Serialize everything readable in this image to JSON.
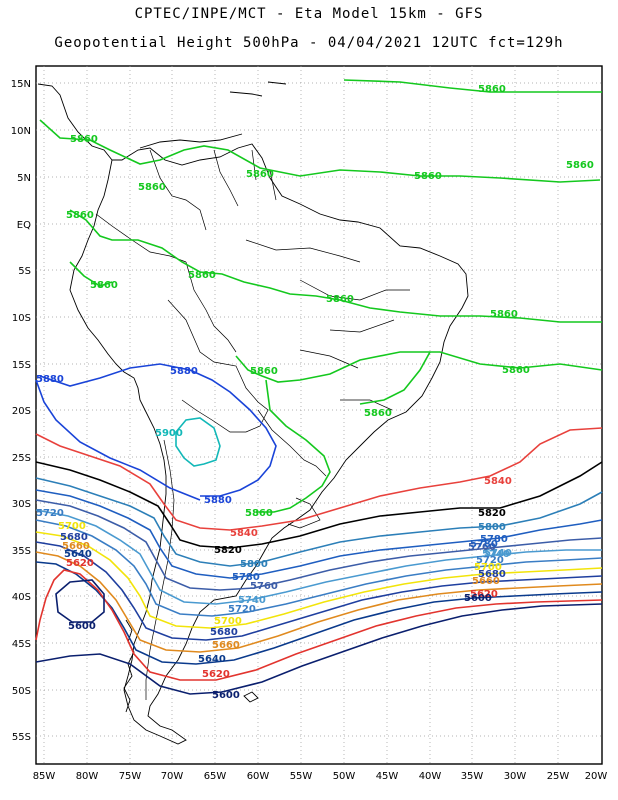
{
  "header": {
    "line1": "CPTEC/INPE/MCT -  Eta Model 15km - GFS",
    "line2": "Geopotential Height 500hPa - 04/04/2021 12UTC fct=129h"
  },
  "axes": {
    "lat_labels": [
      "15N",
      "10N",
      "5N",
      "EQ",
      "5S",
      "10S",
      "15S",
      "20S",
      "25S",
      "30S",
      "35S",
      "40S",
      "45S",
      "50S",
      "55S"
    ],
    "lon_labels": [
      "85W",
      "80W",
      "75W",
      "70W",
      "65W",
      "60W",
      "55W",
      "50W",
      "45W",
      "40W",
      "35W",
      "30W",
      "25W",
      "20W"
    ],
    "grid": "dotted"
  },
  "contour_colors": {
    "5600": "#0a1f6e",
    "5620": "#e2342e",
    "5640": "#0a3a8c",
    "5660": "#e08a1e",
    "5680": "#1f3f9f",
    "5700": "#f2e40a",
    "5720": "#3a7dc4",
    "5740": "#4a9ad0",
    "5760": "#3c5da8",
    "5780": "#1f5ec0",
    "5800": "#2c7fb8",
    "5820": "#000000",
    "5840": "#e8413c",
    "5860": "#14c81e",
    "5880": "#1a44d8",
    "5900": "#12b8b8"
  },
  "contour_labels": [
    {
      "text": "5860",
      "color": "#14c81e"
    },
    {
      "text": "5860",
      "color": "#14c81e"
    },
    {
      "text": "5860",
      "color": "#14c81e"
    },
    {
      "text": "5860",
      "color": "#14c81e"
    },
    {
      "text": "5860",
      "color": "#14c81e"
    },
    {
      "text": "5860",
      "color": "#14c81e"
    },
    {
      "text": "5860",
      "color": "#14c81e"
    },
    {
      "text": "5860",
      "color": "#14c81e"
    },
    {
      "text": "5860",
      "color": "#14c81e"
    },
    {
      "text": "5860",
      "color": "#14c81e"
    },
    {
      "text": "5860",
      "color": "#14c81e"
    },
    {
      "text": "5860",
      "color": "#14c81e"
    },
    {
      "text": "5860",
      "color": "#14c81e"
    },
    {
      "text": "5860",
      "color": "#14c81e"
    },
    {
      "text": "5860",
      "color": "#14c81e"
    },
    {
      "text": "5880",
      "color": "#1a44d8"
    },
    {
      "text": "5880",
      "color": "#1a44d8"
    },
    {
      "text": "5880",
      "color": "#1a44d8"
    },
    {
      "text": "5900",
      "color": "#12b8b8"
    },
    {
      "text": "5840",
      "color": "#e8413c"
    },
    {
      "text": "5840",
      "color": "#e8413c"
    },
    {
      "text": "5820",
      "color": "#000000"
    },
    {
      "text": "5820",
      "color": "#000000"
    },
    {
      "text": "5800",
      "color": "#2c7fb8"
    },
    {
      "text": "5800",
      "color": "#2c7fb8"
    },
    {
      "text": "5780",
      "color": "#1f5ec0"
    },
    {
      "text": "5780",
      "color": "#1f5ec0"
    },
    {
      "text": "5760",
      "color": "#3c5da8"
    },
    {
      "text": "5740",
      "color": "#4a9ad0"
    },
    {
      "text": "5740",
      "color": "#4a9ad0"
    },
    {
      "text": "5720",
      "color": "#3a7dc4"
    },
    {
      "text": "5720",
      "color": "#3a7dc4"
    },
    {
      "text": "5700",
      "color": "#f2e40a"
    },
    {
      "text": "5700",
      "color": "#f2e40a"
    },
    {
      "text": "5680",
      "color": "#1f3f9f"
    },
    {
      "text": "5680",
      "color": "#1f3f9f"
    },
    {
      "text": "5660",
      "color": "#e08a1e"
    },
    {
      "text": "5660",
      "color": "#e08a1e"
    },
    {
      "text": "5640",
      "color": "#0a3a8c"
    },
    {
      "text": "5640",
      "color": "#0a3a8c"
    },
    {
      "text": "5620",
      "color": "#e2342e"
    },
    {
      "text": "5620",
      "color": "#e2342e"
    },
    {
      "text": "5620",
      "color": "#e2342e"
    },
    {
      "text": "5600",
      "color": "#0a1f6e"
    },
    {
      "text": "5600",
      "color": "#0a1f6e"
    },
    {
      "text": "5600",
      "color": "#0a1f6e"
    },
    {
      "text": "5760",
      "color": "#3c5da8"
    },
    {
      "text": "5740",
      "color": "#4a9ad0"
    },
    {
      "text": "5780",
      "color": "#1f5ec0"
    },
    {
      "text": "5720",
      "color": "#3a7dc4"
    },
    {
      "text": "5700",
      "color": "#f2e40a"
    },
    {
      "text": "5680",
      "color": "#1f3f9f"
    },
    {
      "text": "5660",
      "color": "#e08a1e"
    }
  ]
}
